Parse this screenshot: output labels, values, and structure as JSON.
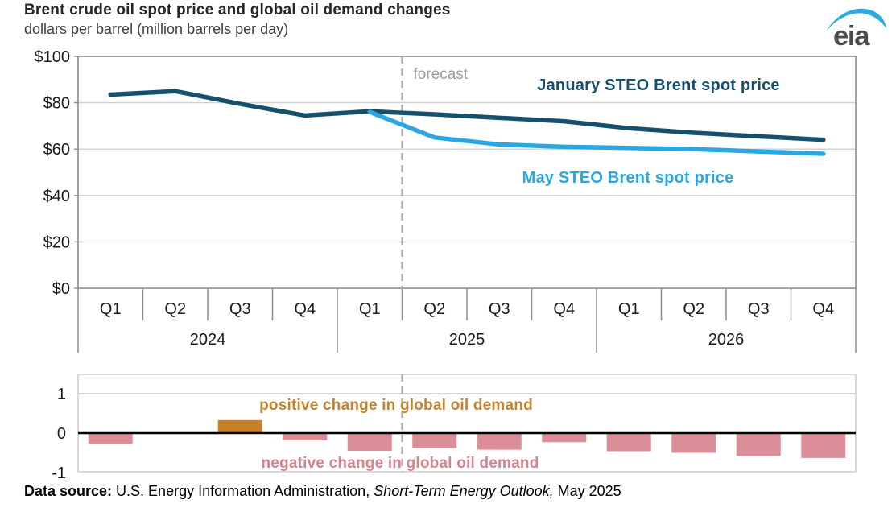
{
  "header": {
    "title": "Brent crude oil spot price and global oil demand changes",
    "subtitle": "dollars per barrel (million barrels per day)",
    "logo_text": "eia"
  },
  "colors": {
    "jan_line": "#17506C",
    "may_line": "#2AA7E0",
    "positive_bar": "#C5812C",
    "negative_bar": "#D98E98",
    "positive_label": "#C5812C",
    "negative_label": "#D9828F",
    "forecast_line": "#ABABAB",
    "forecast_text": "#9C9C9C",
    "grid": "#D0D0D0",
    "plot_border": "#8C8C8C",
    "lower_border": "#C9C9C9",
    "zero_line": "#000000",
    "axis_text": "#1A1A1A"
  },
  "chart_data": [
    {
      "type": "line",
      "title": "Brent crude oil spot price",
      "ylabel": "dollars per barrel",
      "ylim": [
        0,
        100
      ],
      "yticks": [
        {
          "label": "$100",
          "v": 100
        },
        {
          "label": "$80",
          "v": 80
        },
        {
          "label": "$60",
          "v": 60
        },
        {
          "label": "$40",
          "v": 40
        },
        {
          "label": "$20",
          "v": 20
        },
        {
          "label": "$0",
          "v": 0
        }
      ],
      "quarters": [
        "Q1",
        "Q2",
        "Q3",
        "Q4",
        "Q1",
        "Q2",
        "Q3",
        "Q4",
        "Q1",
        "Q2",
        "Q3",
        "Q4"
      ],
      "years": [
        "2024",
        "2025",
        "2026"
      ],
      "forecast_label": "forecast",
      "forecast_boundary_index": 5,
      "grid": true,
      "legend_position": "inline-annotations",
      "series": [
        {
          "name": "January STEO Brent spot price",
          "color_key": "jan_line",
          "values": [
            83.5,
            85,
            79.5,
            74.5,
            76.3,
            75,
            73.5,
            72,
            69,
            67,
            65.5,
            64
          ]
        },
        {
          "name": "May STEO Brent spot price",
          "color_key": "may_line",
          "values": [
            null,
            null,
            null,
            null,
            76,
            65,
            62,
            61,
            60.5,
            60,
            59,
            58
          ]
        }
      ]
    },
    {
      "type": "bar",
      "title": "global oil demand changes",
      "ylabel": "million barrels per day",
      "ylim": [
        -1,
        1
      ],
      "yticks": [
        {
          "label": "1",
          "v": 1
        },
        {
          "label": "0",
          "v": 0
        },
        {
          "label": "-1",
          "v": -1
        }
      ],
      "quarters": [
        "Q1",
        "Q2",
        "Q3",
        "Q4",
        "Q1",
        "Q2",
        "Q3",
        "Q4",
        "Q1",
        "Q2",
        "Q3",
        "Q4"
      ],
      "values": [
        -0.27,
        0,
        0.33,
        -0.18,
        -0.45,
        -0.38,
        -0.42,
        -0.23,
        -0.46,
        -0.5,
        -0.58,
        -0.63
      ],
      "positive_annotation": "positive change in global oil demand",
      "negative_annotation": "negative change in global oil demand",
      "grid": true
    }
  ],
  "footer": {
    "label": "Data source:",
    "text1": " U.S. Energy Information Administration, ",
    "italic": "Short-Term Energy Outlook,",
    "text2": " May 2025"
  }
}
